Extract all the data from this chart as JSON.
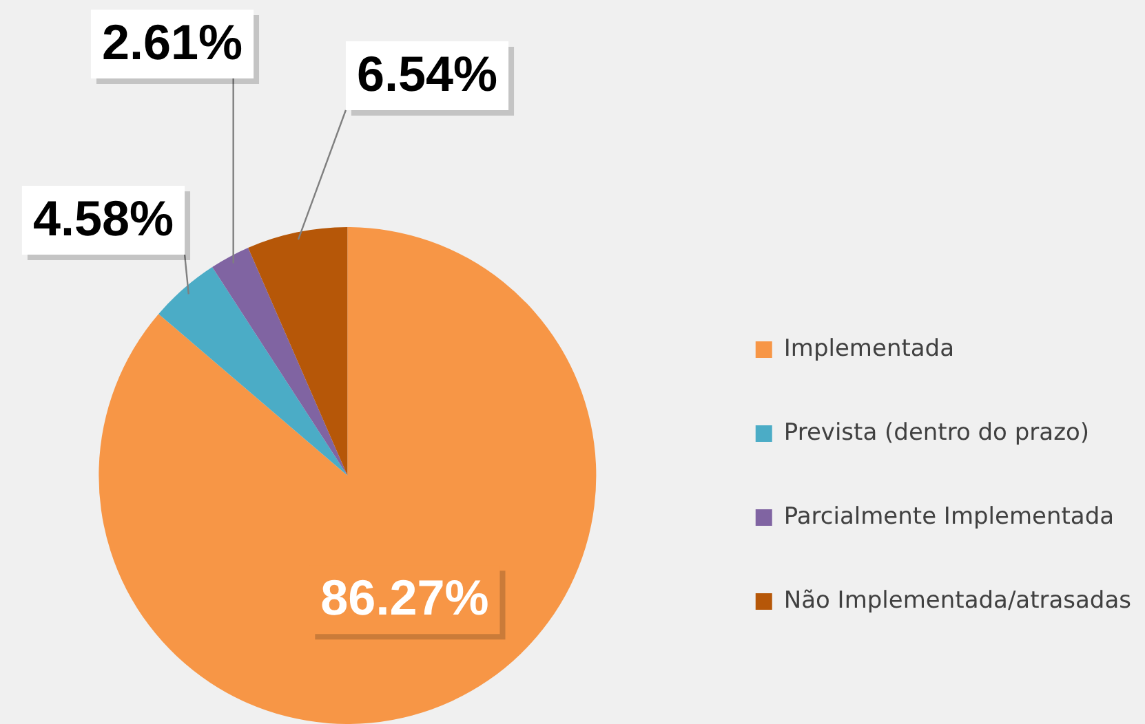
{
  "chart_data": {
    "type": "pie",
    "categories": [
      "Implementada",
      "Prevista (dentro do prazo)",
      "Parcialmente Implementada",
      "Não Implementada/atrasadas"
    ],
    "values": [
      86.27,
      4.58,
      2.61,
      6.54
    ],
    "colors": [
      "#f79646",
      "#4bacc6",
      "#8064a2",
      "#b65708"
    ],
    "value_labels": [
      "86.27%",
      "4.58%",
      "2.61%",
      "6.54%"
    ],
    "legend": "right"
  }
}
